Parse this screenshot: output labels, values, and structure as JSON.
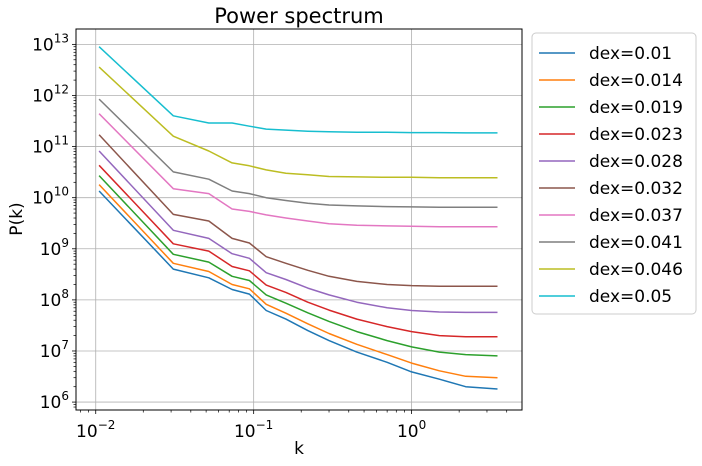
{
  "chart_data": {
    "type": "line",
    "title": "Power spectrum",
    "xlabel": "k",
    "ylabel": "P(k)",
    "xscale": "log",
    "yscale": "log",
    "xlim": [
      0.0075,
      5.0
    ],
    "ylim": [
      700000,
      20000000000000
    ],
    "xticks": [
      {
        "value": 0.01,
        "base": "10",
        "exp": "−2"
      },
      {
        "value": 0.1,
        "base": "10",
        "exp": "−1"
      },
      {
        "value": 1,
        "base": "10",
        "exp": "0"
      }
    ],
    "yticks": [
      {
        "value": 1000000,
        "base": "10",
        "exp": "6"
      },
      {
        "value": 10000000,
        "base": "10",
        "exp": "7"
      },
      {
        "value": 100000000,
        "base": "10",
        "exp": "8"
      },
      {
        "value": 1000000000,
        "base": "10",
        "exp": "9"
      },
      {
        "value": 10000000000,
        "base": "10",
        "exp": "10"
      },
      {
        "value": 100000000000,
        "base": "10",
        "exp": "11"
      },
      {
        "value": 1000000000000,
        "base": "10",
        "exp": "12"
      },
      {
        "value": 10000000000000,
        "base": "10",
        "exp": "13"
      }
    ],
    "grid": true,
    "legend_position": "outside-right-top",
    "x": [
      0.0105,
      0.031,
      0.052,
      0.073,
      0.094,
      0.12,
      0.16,
      0.22,
      0.3,
      0.45,
      0.7,
      1.0,
      1.5,
      2.2,
      3.5
    ],
    "series": [
      {
        "name": "dex=0.01",
        "color": "#1f77b4",
        "values": [
          13500000000.0,
          400000000.0,
          270000000.0,
          160000000.0,
          130000000.0,
          62000000.0,
          42000000.0,
          25000000.0,
          16000000.0,
          9500000.0,
          6000000.0,
          3900000.0,
          2800000.0,
          2000000.0,
          1800000.0
        ]
      },
      {
        "name": "dex=0.014",
        "color": "#ff7f0e",
        "values": [
          18000000000.0,
          520000000.0,
          360000000.0,
          200000000.0,
          165000000.0,
          82000000.0,
          55000000.0,
          34000000.0,
          22000000.0,
          13500000.0,
          8500000.0,
          5800000.0,
          4100000.0,
          3200000.0,
          3000000.0
        ]
      },
      {
        "name": "dex=0.019",
        "color": "#2ca02c",
        "values": [
          27000000000.0,
          780000000.0,
          550000000.0,
          290000000.0,
          240000000.0,
          125000000.0,
          86000000.0,
          56000000.0,
          38000000.0,
          24000000.0,
          16000000.0,
          12000000.0,
          9500000.0,
          8500000.0,
          8000000.0
        ]
      },
      {
        "name": "dex=0.023",
        "color": "#d62728",
        "values": [
          43000000000.0,
          1250000000.0,
          900000000.0,
          450000000.0,
          370000000.0,
          195000000.0,
          140000000.0,
          90000000.0,
          63000000.0,
          42000000.0,
          30000000.0,
          24000000.0,
          20000000.0,
          19000000.0,
          19000000.0
        ]
      },
      {
        "name": "dex=0.028",
        "color": "#9467bd",
        "values": [
          82000000000.0,
          2300000000.0,
          1600000000.0,
          800000000.0,
          650000000.0,
          340000000.0,
          250000000.0,
          170000000.0,
          125000000.0,
          90000000.0,
          70000000.0,
          62000000.0,
          58000000.0,
          57000000.0,
          57000000.0
        ]
      },
      {
        "name": "dex=0.032",
        "color": "#8c564b",
        "values": [
          170000000000.0,
          4700000000.0,
          3500000000.0,
          1600000000.0,
          1300000000.0,
          700000000.0,
          520000000.0,
          380000000.0,
          290000000.0,
          230000000.0,
          200000000.0,
          190000000.0,
          185000000.0,
          185000000.0,
          185000000.0
        ]
      },
      {
        "name": "dex=0.037",
        "color": "#e377c2",
        "values": [
          440000000000.0,
          15000000000.0,
          12000000000.0,
          6000000000.0,
          5400000000.0,
          4600000000.0,
          4000000000.0,
          3500000000.0,
          3100000000.0,
          2900000000.0,
          2800000000.0,
          2750000000.0,
          2700000000.0,
          2700000000.0,
          2700000000.0
        ]
      },
      {
        "name": "dex=0.041",
        "color": "#7f7f7f",
        "values": [
          850000000000.0,
          32000000000.0,
          23000000000.0,
          13500000000.0,
          12000000000.0,
          10000000000.0,
          8800000000.0,
          7800000000.0,
          7200000000.0,
          6900000000.0,
          6700000000.0,
          6600000000.0,
          6500000000.0,
          6500000000.0,
          6500000000.0
        ]
      },
      {
        "name": "dex=0.046",
        "color": "#bcbd22",
        "values": [
          3600000000000.0,
          160000000000.0,
          82000000000.0,
          48000000000.0,
          42000000000.0,
          35000000000.0,
          30000000000.0,
          28000000000.0,
          26000000000.0,
          25500000000.0,
          25000000000.0,
          25000000000.0,
          24500000000.0,
          24500000000.0,
          24500000000.0
        ]
      },
      {
        "name": "dex=0.05",
        "color": "#17becf",
        "values": [
          9000000000000.0,
          400000000000.0,
          290000000000.0,
          290000000000.0,
          250000000000.0,
          220000000000.0,
          210000000000.0,
          200000000000.0,
          195000000000.0,
          190000000000.0,
          190000000000.0,
          188000000000.0,
          188000000000.0,
          185000000000.0,
          185000000000.0
        ]
      }
    ]
  }
}
